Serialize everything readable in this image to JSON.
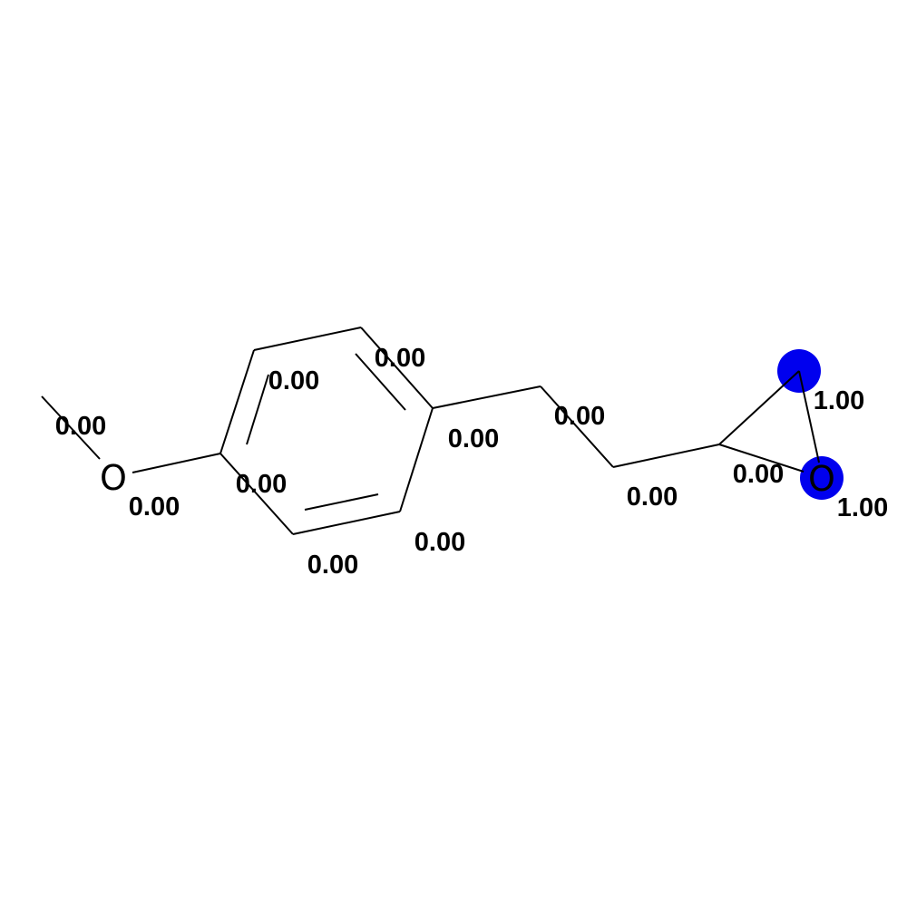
{
  "diagram": {
    "atom_labels": {
      "methoxy_oxygen": "O",
      "epoxide_oxygen": "O"
    },
    "highlight_color": "#0000ee",
    "scores": {
      "methyl": "0.00",
      "methoxy_oxygen": "0.00",
      "ring_c1": "0.00",
      "ring_c2": "0.00",
      "ring_c3": "0.00",
      "ring_c4": "0.00",
      "ring_c5": "0.00",
      "ring_c6": "0.00",
      "ch2_a": "0.00",
      "ch2_b": "0.00",
      "epoxide_ch": "0.00",
      "epoxide_ch2": "1.00",
      "epoxide_oxygen": "1.00"
    }
  }
}
